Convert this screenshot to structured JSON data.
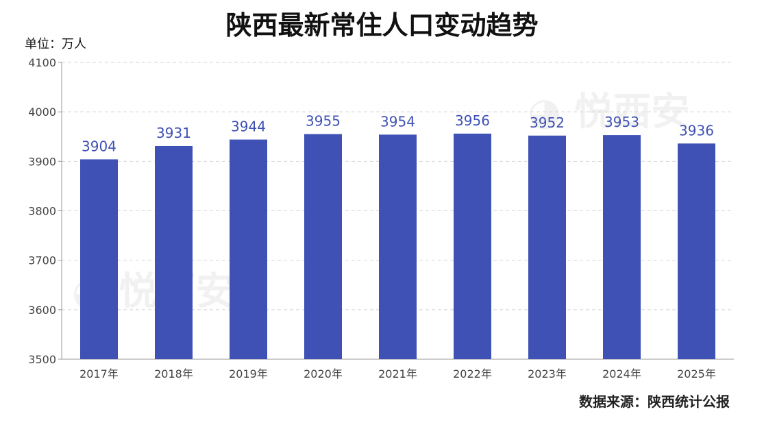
{
  "watermark": "悦西安",
  "chart_data": {
    "type": "bar",
    "title": "陕西最新常住人口变动趋势",
    "ylabel": "单位：万人",
    "source": "数据来源：陕西统计公报",
    "categories": [
      "2017年",
      "2018年",
      "2019年",
      "2020年",
      "2021年",
      "2022年",
      "2023年",
      "2024年",
      "2025年"
    ],
    "values": [
      3904,
      3931,
      3944,
      3955,
      3954,
      3956,
      3952,
      3953,
      3936
    ],
    "ylim": [
      3500,
      4100
    ],
    "yticks": [
      3500,
      3600,
      3700,
      3800,
      3900,
      4000,
      4100
    ],
    "grid": true,
    "colors": {
      "bar": "#3f51b5",
      "label": "#3f51b5"
    }
  }
}
